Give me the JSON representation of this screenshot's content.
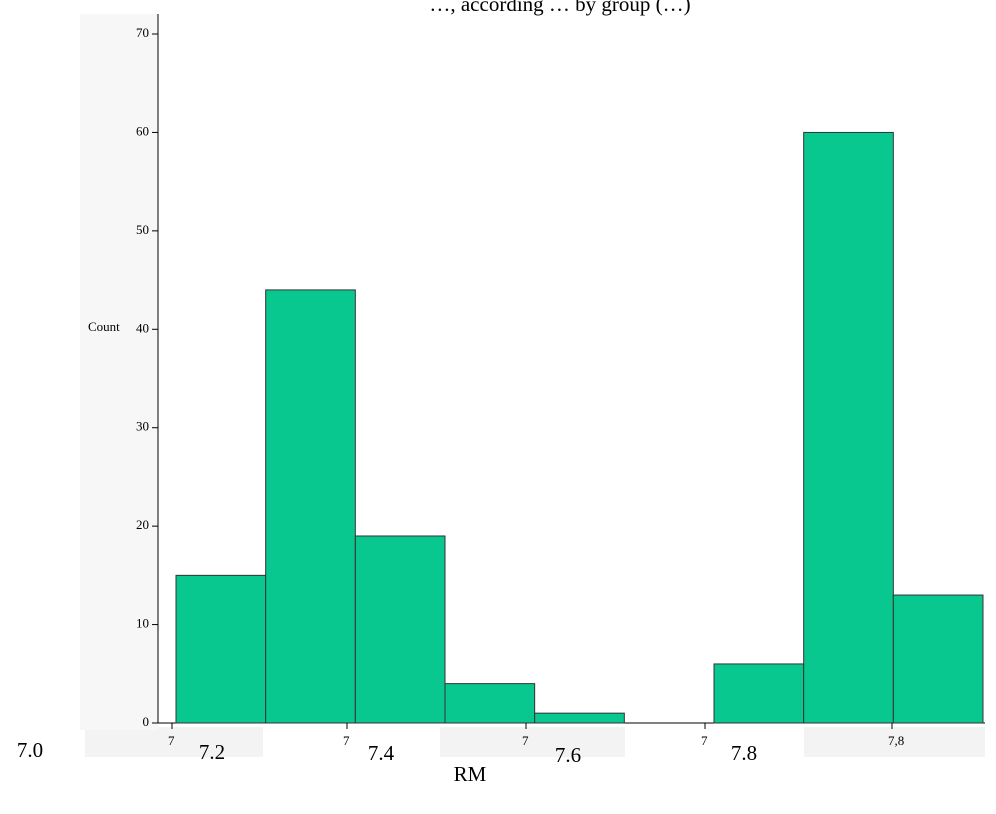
{
  "chart_data": {
    "type": "histogram",
    "title": "…, according … by group (…)",
    "x_label": "RM",
    "y_label": "Count",
    "bins": [
      7.15,
      7.25,
      7.35,
      7.45,
      7.55,
      7.65,
      7.75,
      7.85,
      7.95,
      8.05
    ],
    "values": [
      15,
      44,
      19,
      4,
      1,
      0,
      6,
      60,
      13
    ],
    "color": "#08c78f",
    "ylim": [
      0,
      70
    ],
    "yticks": [
      0,
      10,
      20,
      30,
      40,
      50,
      60,
      70
    ],
    "axis_tick_labels": [
      "7",
      "7",
      "7",
      "7",
      "7,8"
    ],
    "overlay_labels": [
      "7.0",
      "7.2",
      "7.4",
      "7.6",
      "7.8"
    ]
  }
}
